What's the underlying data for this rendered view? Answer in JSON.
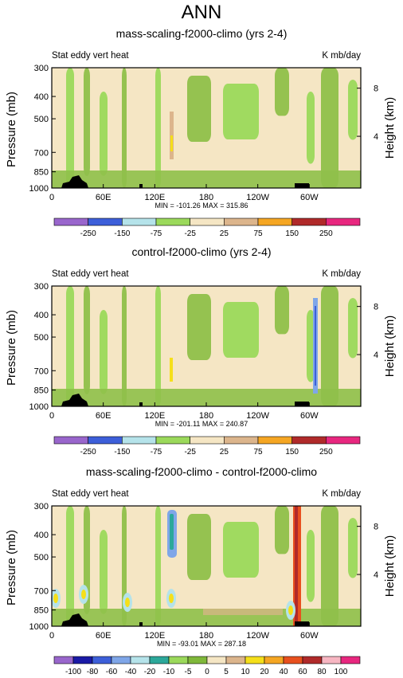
{
  "page_title": "ANN",
  "palette": {
    "abs": [
      "#9966cc",
      "#1a1aa6",
      "#3d5fd9",
      "#7fa6e8",
      "#b5e3ea",
      "#2ca89a",
      "#9bd95b",
      "#7fb83a",
      "#f5e6c4",
      "#dcb58c",
      "#f5df1a",
      "#f5a623",
      "#e8501e",
      "#b02a2a",
      "#f7b6c2",
      "#e8277f"
    ],
    "diff": [
      "#9966cc",
      "#1a1aa6",
      "#3d5fd9",
      "#7fa6e8",
      "#b5e3ea",
      "#2ca89a",
      "#9bd95b",
      "#7fb83a",
      "#f5e6c4",
      "#dcb58c",
      "#f5df1a",
      "#f5a623",
      "#e8501e",
      "#b02a2a",
      "#f7b6c2",
      "#e8277f"
    ]
  },
  "chart_data": [
    {
      "type": "contour",
      "title": "mass-scaling-f2000-climo (yrs 2-4)",
      "left_string": "Stat eddy vert heat",
      "right_string": "K mb/day",
      "ylabel": "Pressure (mb)",
      "ylabel_right": "Height (km)",
      "x_ticks": [
        "0",
        "60E",
        "120E",
        "180",
        "120W",
        "60W"
      ],
      "y_ticks": [
        "300",
        "400",
        "500",
        "700",
        "850",
        "1000"
      ],
      "y_right_ticks": [
        "8",
        "4"
      ],
      "stats": "MIN = -101.26   MAX = 315.86",
      "colorbar_labels": [
        "-250",
        "-150",
        "-75",
        "-25",
        "25",
        "75",
        "150",
        "250"
      ],
      "ylim": [
        1000,
        300
      ]
    },
    {
      "type": "contour",
      "title": "control-f2000-climo (yrs 2-4)",
      "left_string": "Stat eddy vert heat",
      "right_string": "K mb/day",
      "ylabel": "Pressure (mb)",
      "ylabel_right": "Height (km)",
      "x_ticks": [
        "0",
        "60E",
        "120E",
        "180",
        "120W",
        "60W"
      ],
      "y_ticks": [
        "300",
        "400",
        "500",
        "700",
        "850",
        "1000"
      ],
      "y_right_ticks": [
        "8",
        "4"
      ],
      "stats": "MIN = -201.11   MAX = 240.87",
      "colorbar_labels": [
        "-250",
        "-150",
        "-75",
        "-25",
        "25",
        "75",
        "150",
        "250"
      ],
      "ylim": [
        1000,
        300
      ]
    },
    {
      "type": "contour",
      "title": "mass-scaling-f2000-climo - control-f2000-climo",
      "left_string": "Stat eddy vert heat",
      "right_string": "K mb/day",
      "ylabel": "Pressure (mb)",
      "ylabel_right": "Height (km)",
      "x_ticks": [
        "0",
        "60E",
        "120E",
        "180",
        "120W",
        "60W"
      ],
      "y_ticks": [
        "300",
        "400",
        "500",
        "700",
        "850",
        "1000"
      ],
      "y_right_ticks": [
        "8",
        "4"
      ],
      "stats": "MIN = -93.01   MAX = 287.18",
      "colorbar_labels": [
        "-100",
        "-80",
        "-60",
        "-40",
        "-20",
        "-10",
        "-5",
        "0",
        "5",
        "10",
        "20",
        "40",
        "60",
        "80",
        "100"
      ],
      "ylim": [
        1000,
        300
      ]
    }
  ]
}
